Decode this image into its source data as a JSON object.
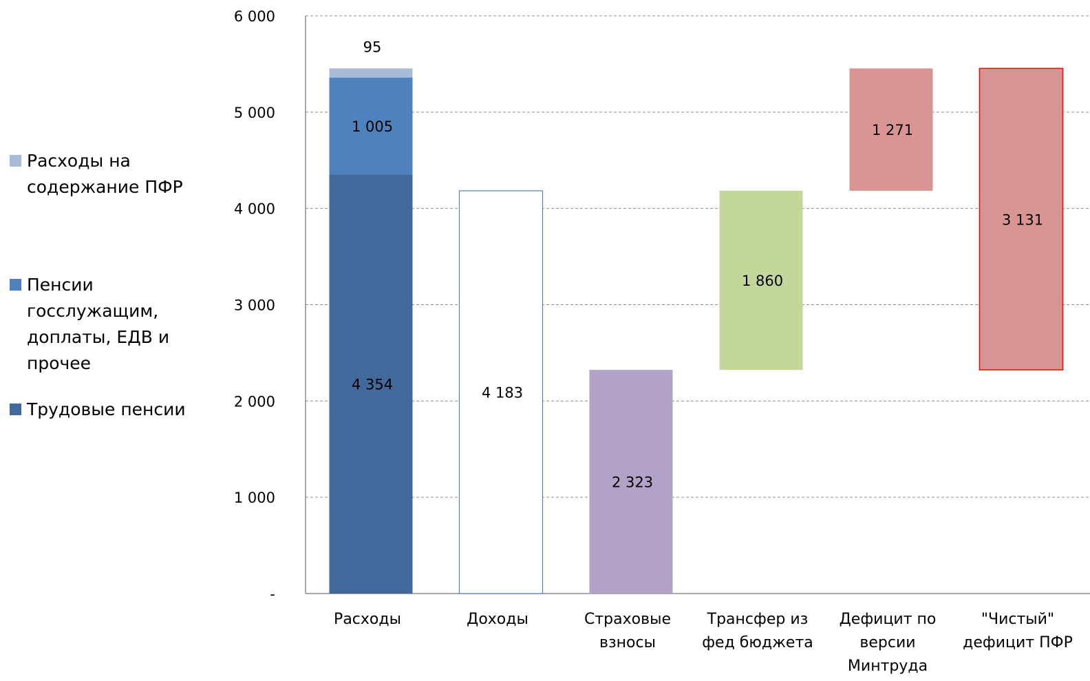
{
  "chart_data": {
    "type": "bar",
    "subtype": "waterfall",
    "ylim": [
      0,
      6000
    ],
    "y_ticks": [
      0,
      1000,
      2000,
      3000,
      4000,
      5000,
      6000
    ],
    "y_tick_labels": [
      "-",
      "1 000",
      "2 000",
      "3 000",
      "4 000",
      "5 000",
      "6 000"
    ],
    "grid": true,
    "legend_position": "left",
    "categories": [
      "Расходы",
      "Доходы",
      "Страховые взносы",
      "Трансфер из фед бюджета",
      "Дефицит по версии Минтруда",
      "\"Чистый\" дефицит ПФР"
    ],
    "category_lines": [
      [
        "Расходы"
      ],
      [
        "Доходы"
      ],
      [
        "Страховые",
        "взносы"
      ],
      [
        "Трансфер из",
        "фед бюджета"
      ],
      [
        "Дефицит по",
        "версии",
        "Минтруда"
      ],
      [
        "\"Чистый\"",
        "дефицит ПФР"
      ]
    ],
    "series": [
      {
        "name": "Трудовые пенсии",
        "color": "#41699c"
      },
      {
        "name": "Пенсии госслужащим, доплаты, ЕДВ и прочее",
        "color": "#4f81bd"
      },
      {
        "name": "Расходы на содержание ПФР",
        "color": "#a9bbd9"
      }
    ],
    "legend": [
      {
        "label_lines": [
          "Расходы на",
          "содержание ПФР"
        ],
        "color": "#a9bbd9"
      },
      {
        "label_lines": [
          "Пенсии",
          "госслужащим,",
          "доплаты, ЕДВ и",
          "прочее"
        ],
        "color": "#4f81bd"
      },
      {
        "label_lines": [
          "Трудовые пенсии"
        ],
        "color": "#41699c"
      }
    ],
    "bars": [
      {
        "category_index": 0,
        "base": 0,
        "value": 4354,
        "label": "4 354",
        "color": "#41699c",
        "series": "Трудовые пенсии"
      },
      {
        "category_index": 0,
        "base": 4354,
        "value": 1005,
        "label": "1 005",
        "color": "#4f81bd",
        "series": "Пенсии госслужащим, доплаты, ЕДВ и прочее"
      },
      {
        "category_index": 0,
        "base": 5359,
        "value": 95,
        "label": "95",
        "label_above": true,
        "color": "#a9bbd9",
        "series": "Расходы на содержание ПФР"
      },
      {
        "category_index": 1,
        "base": 0,
        "value": 4183,
        "label": "4 183",
        "color": "#ffffff",
        "stroke": "#4f81bd",
        "hollow": true
      },
      {
        "category_index": 2,
        "base": 0,
        "value": 2323,
        "label": "2 323",
        "color": "#b3a2c7"
      },
      {
        "category_index": 3,
        "base": 2323,
        "value": 1860,
        "label": "1 860",
        "color": "#c4d79b"
      },
      {
        "category_index": 4,
        "base": 4183,
        "value": 1271,
        "label": "1 271",
        "color": "#d99594"
      },
      {
        "category_index": 5,
        "base": 2323,
        "value": 3131,
        "label": "3 131",
        "color": "#d99594",
        "stroke": "#ff0000"
      }
    ]
  }
}
